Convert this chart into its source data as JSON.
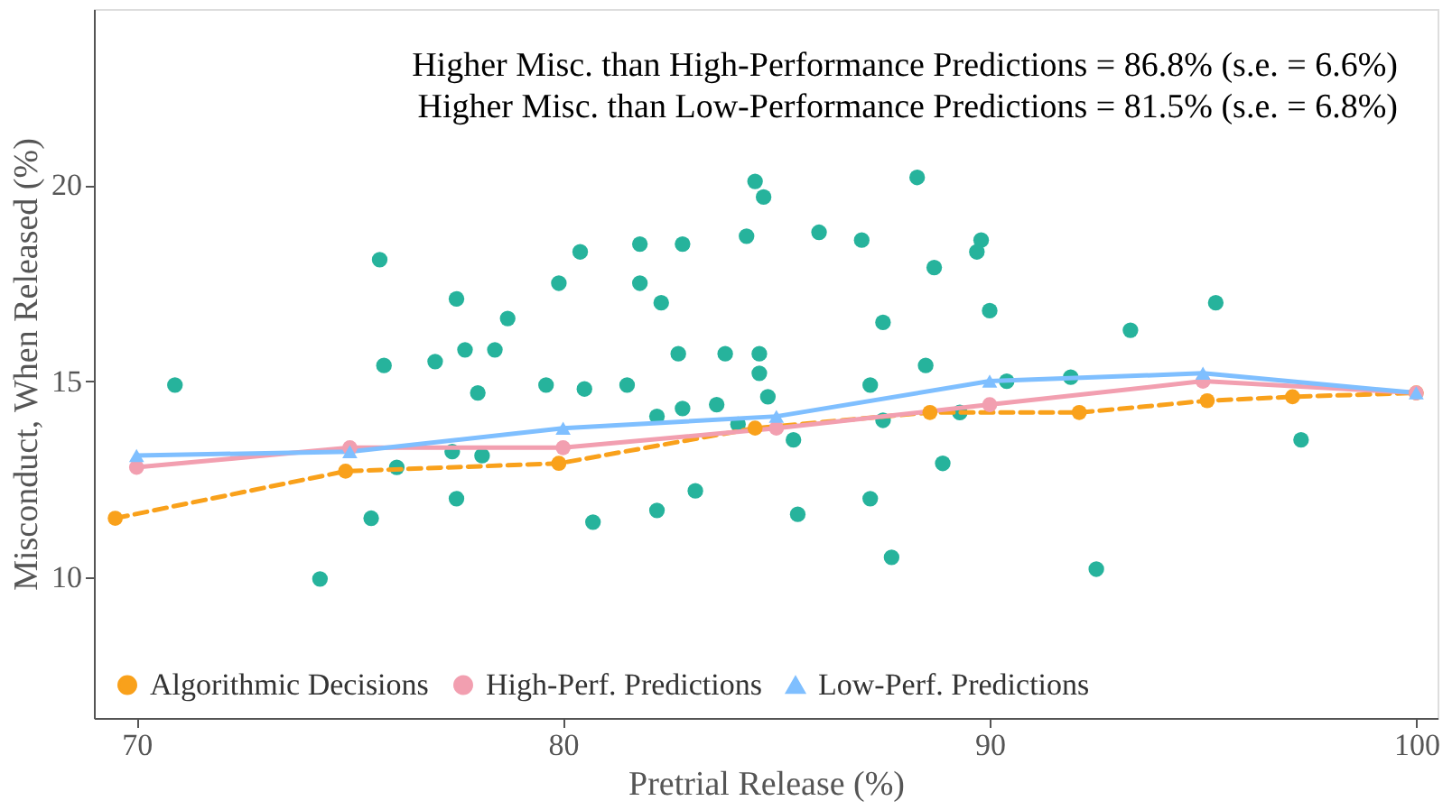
{
  "chart_data": {
    "type": "scatter",
    "xlabel": "Pretrial Release (%)",
    "ylabel": "Misconduct, When Released (%)",
    "annotations": [
      "Higher Misc. than High-Performance Predictions = 86.8% (s.e. = 6.6%)",
      "Higher Misc. than Low-Performance Predictions = 81.5% (s.e. = 6.8%)"
    ],
    "xlim": [
      69.0,
      100.5
    ],
    "ylim": [
      6.4,
      24.5
    ],
    "xticks": [
      70,
      80,
      90,
      100
    ],
    "yticks": [
      10,
      15,
      20
    ],
    "grid": false,
    "legend": "bottom left",
    "series": [
      {
        "color": "#26b39c",
        "marker": "circle",
        "x": [
          70.9,
          75.7,
          77.5,
          80.4,
          79.9,
          78.7,
          75.8,
          77.0,
          77.7,
          78.4,
          78.0,
          79.6,
          80.5,
          77.4,
          78.1,
          76.1,
          77.5,
          75.5,
          74.3,
          80.7,
          84.5,
          84.7,
          88.3,
          81.8,
          82.8,
          84.3,
          86.0,
          87.0,
          89.8,
          89.7,
          88.7,
          81.8,
          82.3,
          87.5,
          90.0,
          82.7,
          83.8,
          84.6,
          84.6,
          88.5,
          81.5,
          87.2,
          84.8,
          90.4,
          82.2,
          82.8,
          83.6,
          84.1,
          87.5,
          89.3,
          85.4,
          88.9,
          83.1,
          82.2,
          85.5,
          87.2,
          87.7,
          95.3,
          93.3,
          91.9,
          97.3,
          92.5
        ],
        "values": [
          14.9,
          18.1,
          17.1,
          18.3,
          17.5,
          16.6,
          15.4,
          15.5,
          15.8,
          15.8,
          14.7,
          14.9,
          14.8,
          13.2,
          13.1,
          12.8,
          12.0,
          11.5,
          9.95,
          11.4,
          20.1,
          19.7,
          20.2,
          18.5,
          18.5,
          18.7,
          18.8,
          18.6,
          18.6,
          18.3,
          17.9,
          17.5,
          17.0,
          16.5,
          16.8,
          15.7,
          15.7,
          15.7,
          15.2,
          15.4,
          14.9,
          14.9,
          14.6,
          15.0,
          14.1,
          14.3,
          14.4,
          13.9,
          14.0,
          14.2,
          13.5,
          12.9,
          12.2,
          11.7,
          11.6,
          12.0,
          10.5,
          17.0,
          16.3,
          15.1,
          13.5,
          10.2
        ]
      },
      {
        "type": "line",
        "name": "Algorithmic Decisions",
        "color": "#f9a11b",
        "marker": "circle",
        "line_style": "dashed",
        "x": [
          69.5,
          74.9,
          79.9,
          84.5,
          88.6,
          92.1,
          95.1,
          97.1,
          100
        ],
        "values": [
          11.5,
          12.7,
          12.9,
          13.8,
          14.2,
          14.2,
          14.5,
          14.6,
          14.7
        ]
      },
      {
        "type": "line",
        "name": "High-Perf. Predictions",
        "color": "#f29fb0",
        "marker": "circle",
        "line_style": "solid",
        "x": [
          70,
          75,
          80,
          85,
          90,
          95,
          100
        ],
        "values": [
          12.8,
          13.3,
          13.3,
          13.8,
          14.4,
          15.0,
          14.7
        ]
      },
      {
        "type": "line",
        "name": "Low-Perf. Predictions",
        "color": "#7fbfff",
        "marker": "triangle",
        "line_style": "solid",
        "x": [
          70,
          75,
          80,
          85,
          90,
          95,
          100
        ],
        "values": [
          13.1,
          13.2,
          13.8,
          14.1,
          15.0,
          15.2,
          14.7
        ]
      }
    ]
  }
}
